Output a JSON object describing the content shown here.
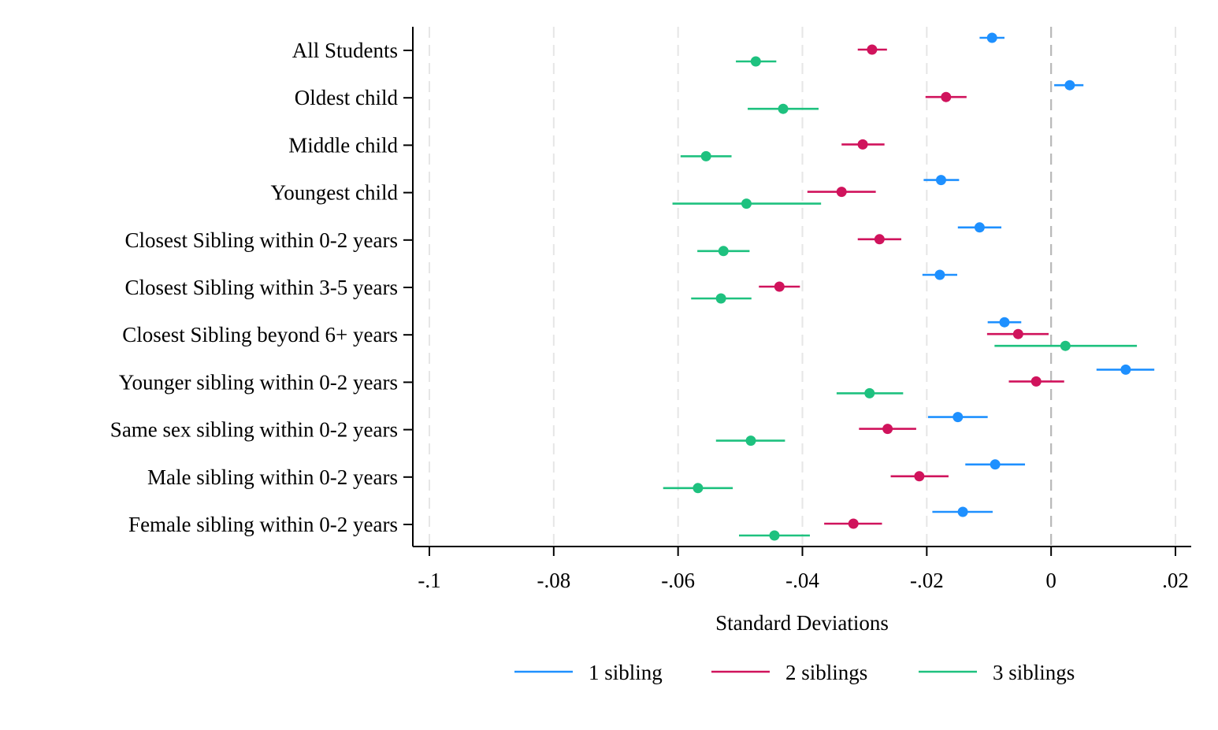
{
  "chart_data": {
    "type": "scatter",
    "subtype": "coefficient-plot-horizontal",
    "title": "",
    "xlabel": "Standard Deviations",
    "ylabel": "",
    "xlim": [
      -0.1,
      0.02
    ],
    "xticks": [
      -0.1,
      -0.08,
      -0.06,
      -0.04,
      -0.02,
      0,
      0.02
    ],
    "xtick_labels": [
      "-.1",
      "-.08",
      "-.06",
      "-.04",
      "-.02",
      "0",
      ".02"
    ],
    "grid": "vertical dashed lines at each x tick",
    "reference_line": 0,
    "legend_position": "bottom",
    "categories": [
      "All Students",
      "Oldest child",
      "Middle child",
      "Youngest child",
      "Closest Sibling within 0-2 years",
      "Closest Sibling within 3-5 years",
      "Closest Sibling beyond 6+ years",
      "Younger sibling within 0-2 years",
      "Same sex sibling within 0-2 years",
      "Male sibling within 0-2 years",
      "Female sibling within 0-2 years"
    ],
    "series": [
      {
        "name": "1 sibling",
        "color": "#1e90ff",
        "points": [
          {
            "category": "All Students",
            "estimate": -0.0095,
            "ci": [
              -0.0115,
              -0.0075
            ]
          },
          {
            "category": "Oldest child",
            "estimate": 0.003,
            "ci": [
              0.0005,
              0.0052
            ]
          },
          {
            "category": "Youngest child",
            "estimate": -0.0177,
            "ci": [
              -0.0205,
              -0.0148
            ]
          },
          {
            "category": "Closest Sibling within 0-2 years",
            "estimate": -0.0115,
            "ci": [
              -0.015,
              -0.008
            ]
          },
          {
            "category": "Closest Sibling within 3-5 years",
            "estimate": -0.0179,
            "ci": [
              -0.0207,
              -0.0151
            ]
          },
          {
            "category": "Closest Sibling beyond 6+ years",
            "estimate": -0.0075,
            "ci": [
              -0.0102,
              -0.0048
            ]
          },
          {
            "category": "Younger sibling within 0-2 years",
            "estimate": 0.012,
            "ci": [
              0.0073,
              0.0166
            ]
          },
          {
            "category": "Same sex sibling within 0-2 years",
            "estimate": -0.015,
            "ci": [
              -0.0198,
              -0.0102
            ]
          },
          {
            "category": "Male sibling within 0-2 years",
            "estimate": -0.009,
            "ci": [
              -0.0138,
              -0.0042
            ]
          },
          {
            "category": "Female sibling within 0-2 years",
            "estimate": -0.0142,
            "ci": [
              -0.0191,
              -0.0094
            ]
          }
        ]
      },
      {
        "name": "2 siblings",
        "color": "#d0135c",
        "points": [
          {
            "category": "All Students",
            "estimate": -0.0288,
            "ci": [
              -0.0311,
              -0.0264
            ]
          },
          {
            "category": "Oldest child",
            "estimate": -0.0169,
            "ci": [
              -0.0202,
              -0.0136
            ]
          },
          {
            "category": "Middle child",
            "estimate": -0.0303,
            "ci": [
              -0.0337,
              -0.0268
            ]
          },
          {
            "category": "Youngest child",
            "estimate": -0.0337,
            "ci": [
              -0.0392,
              -0.0282
            ]
          },
          {
            "category": "Closest Sibling within 0-2 years",
            "estimate": -0.0276,
            "ci": [
              -0.0311,
              -0.0241
            ]
          },
          {
            "category": "Closest Sibling within 3-5 years",
            "estimate": -0.0437,
            "ci": [
              -0.047,
              -0.0404
            ]
          },
          {
            "category": "Closest Sibling beyond 6+ years",
            "estimate": -0.0053,
            "ci": [
              -0.0103,
              -0.0004
            ]
          },
          {
            "category": "Younger sibling within 0-2 years",
            "estimate": -0.0024,
            "ci": [
              -0.0068,
              0.0021
            ]
          },
          {
            "category": "Same sex sibling within 0-2 years",
            "estimate": -0.0263,
            "ci": [
              -0.0309,
              -0.0217
            ]
          },
          {
            "category": "Male sibling within 0-2 years",
            "estimate": -0.0212,
            "ci": [
              -0.0258,
              -0.0165
            ]
          },
          {
            "category": "Female sibling within 0-2 years",
            "estimate": -0.0318,
            "ci": [
              -0.0365,
              -0.0272
            ]
          }
        ]
      },
      {
        "name": "3 siblings",
        "color": "#1ec17f",
        "points": [
          {
            "category": "All Students",
            "estimate": -0.0475,
            "ci": [
              -0.0507,
              -0.0442
            ]
          },
          {
            "category": "Oldest child",
            "estimate": -0.0431,
            "ci": [
              -0.0488,
              -0.0374
            ]
          },
          {
            "category": "Middle child",
            "estimate": -0.0555,
            "ci": [
              -0.0596,
              -0.0514
            ]
          },
          {
            "category": "Youngest child",
            "estimate": -0.049,
            "ci": [
              -0.0609,
              -0.037
            ]
          },
          {
            "category": "Closest Sibling within 0-2 years",
            "estimate": -0.0527,
            "ci": [
              -0.0569,
              -0.0485
            ]
          },
          {
            "category": "Closest Sibling within 3-5 years",
            "estimate": -0.0531,
            "ci": [
              -0.0579,
              -0.0482
            ]
          },
          {
            "category": "Closest Sibling beyond 6+ years",
            "estimate": 0.0023,
            "ci": [
              -0.0091,
              0.0138
            ]
          },
          {
            "category": "Younger sibling within 0-2 years",
            "estimate": -0.0292,
            "ci": [
              -0.0345,
              -0.0238
            ]
          },
          {
            "category": "Same sex sibling within 0-2 years",
            "estimate": -0.0483,
            "ci": [
              -0.0539,
              -0.0428
            ]
          },
          {
            "category": "Male sibling within 0-2 years",
            "estimate": -0.0568,
            "ci": [
              -0.0624,
              -0.0512
            ]
          },
          {
            "category": "Female sibling within 0-2 years",
            "estimate": -0.0445,
            "ci": [
              -0.0502,
              -0.0388
            ]
          }
        ]
      }
    ]
  }
}
